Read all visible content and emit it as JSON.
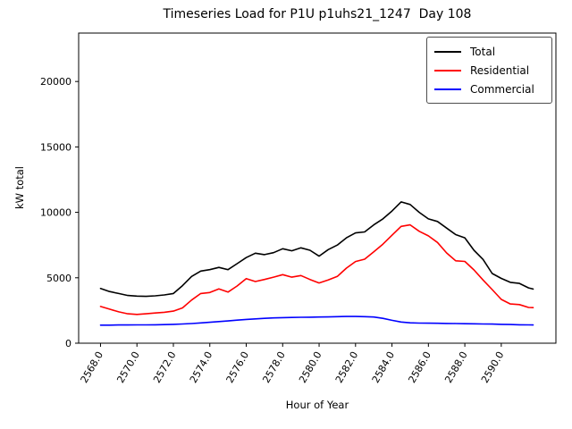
{
  "figure": {
    "title": "Timeseries Load for P1U p1uhs21_1247  Day 108",
    "xlabel": "Hour of Year",
    "ylabel": "kW total",
    "background_color": "#ffffff",
    "spine_color": "#000000"
  },
  "legend": {
    "position": "upper right",
    "entries": [
      {
        "label": "Total",
        "color": "#000000"
      },
      {
        "label": "Residential",
        "color": "#ff0000"
      },
      {
        "label": "Commercial",
        "color": "#0000ff"
      }
    ]
  },
  "chart_data": {
    "type": "line",
    "title": "Timeseries Load for P1U p1uhs21_1247  Day 108",
    "xlabel": "Hour of Year",
    "ylabel": "kW total",
    "grid": false,
    "legend_position": "upper right",
    "xlim": [
      2566.8,
      2593.0
    ],
    "ylim": [
      0,
      23700
    ],
    "xticks": {
      "values": [
        2568,
        2570,
        2572,
        2574,
        2576,
        2578,
        2580,
        2582,
        2584,
        2586,
        2588,
        2590
      ],
      "labels": [
        "2568.0",
        "2570.0",
        "2572.0",
        "2574.0",
        "2576.0",
        "2578.0",
        "2580.0",
        "2582.0",
        "2584.0",
        "2586.0",
        "2588.0",
        "2590.0"
      ],
      "rotation_deg": 60
    },
    "yticks": {
      "values": [
        0,
        5000,
        10000,
        15000,
        20000
      ],
      "labels": [
        "0",
        "5000",
        "10000",
        "15000",
        "20000"
      ]
    },
    "x": [
      2568.0,
      2568.5,
      2569.0,
      2569.5,
      2570.0,
      2570.5,
      2571.0,
      2571.5,
      2572.0,
      2572.5,
      2573.0,
      2573.5,
      2574.0,
      2574.5,
      2575.0,
      2575.5,
      2576.0,
      2576.5,
      2577.0,
      2577.5,
      2578.0,
      2578.5,
      2579.0,
      2579.5,
      2580.0,
      2580.5,
      2581.0,
      2581.5,
      2582.0,
      2582.5,
      2583.0,
      2583.5,
      2584.0,
      2584.5,
      2585.0,
      2585.5,
      2586.0,
      2586.5,
      2587.0,
      2587.5,
      2588.0,
      2588.5,
      2589.0,
      2589.5,
      2590.0,
      2590.5,
      2591.0,
      2591.5,
      2591.75
    ],
    "series": [
      {
        "name": "Total",
        "color": "#000000",
        "values": [
          4180,
          3950,
          3800,
          3650,
          3600,
          3580,
          3620,
          3690,
          3800,
          4400,
          5100,
          5510,
          5620,
          5790,
          5620,
          6080,
          6540,
          6880,
          6770,
          6920,
          7220,
          7060,
          7290,
          7100,
          6650,
          7150,
          7500,
          8050,
          8430,
          8500,
          9040,
          9500,
          10100,
          10800,
          10600,
          10000,
          9500,
          9300,
          8800,
          8300,
          8050,
          7100,
          6400,
          5330,
          4950,
          4650,
          4570,
          4230,
          4140
        ]
      },
      {
        "name": "Residential",
        "color": "#ff0000",
        "values": [
          2810,
          2600,
          2400,
          2250,
          2200,
          2250,
          2310,
          2360,
          2450,
          2700,
          3300,
          3800,
          3870,
          4150,
          3910,
          4370,
          4940,
          4710,
          4870,
          5050,
          5240,
          5050,
          5170,
          4870,
          4600,
          4830,
          5100,
          5740,
          6240,
          6420,
          6990,
          7570,
          8250,
          8930,
          9040,
          8550,
          8200,
          7700,
          6900,
          6300,
          6250,
          5600,
          4830,
          4100,
          3350,
          3000,
          2950,
          2730,
          2720
        ]
      },
      {
        "name": "Commercial",
        "color": "#0000ff",
        "values": [
          1380,
          1380,
          1390,
          1390,
          1400,
          1400,
          1410,
          1420,
          1440,
          1470,
          1500,
          1550,
          1600,
          1650,
          1700,
          1760,
          1820,
          1860,
          1900,
          1930,
          1950,
          1970,
          1980,
          1990,
          2000,
          2010,
          2030,
          2040,
          2040,
          2030,
          2000,
          1900,
          1750,
          1620,
          1560,
          1540,
          1530,
          1520,
          1510,
          1500,
          1490,
          1480,
          1470,
          1460,
          1440,
          1430,
          1410,
          1400,
          1390
        ]
      }
    ]
  }
}
